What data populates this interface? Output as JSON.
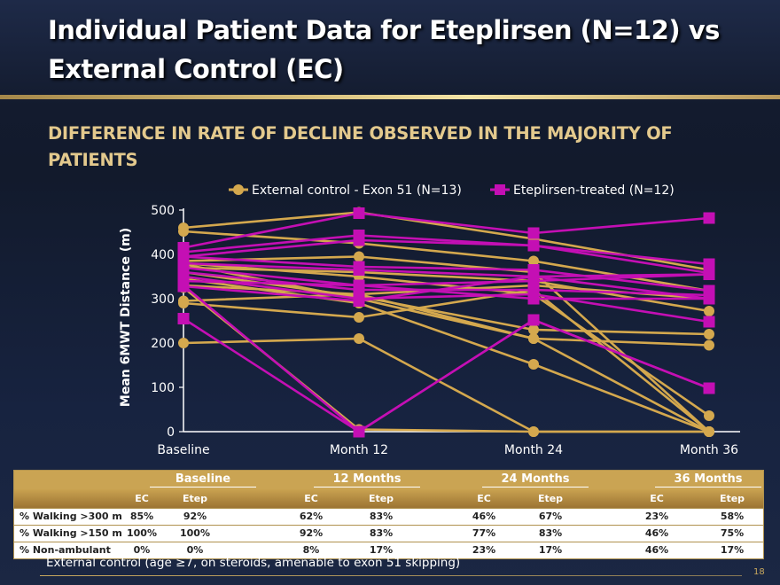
{
  "slide": {
    "title": "Individual Patient Data for Eteplirsen (N=12) vs External Control (EC)",
    "subtitle": "DIFFERENCE IN RATE OF DECLINE OBSERVED IN THE MAJORITY OF PATIENTS",
    "footnote": "External control (age ≥7, on steroids, amenable to exon 51 skipping)",
    "page_number": "18"
  },
  "chart_data": {
    "type": "line",
    "title": "",
    "xlabel": "",
    "ylabel": "Mean 6MWT Distance (m)",
    "categories": [
      "Baseline",
      "Month 12",
      "Month 24",
      "Month 36"
    ],
    "ylim": [
      0,
      500
    ],
    "yticks": [
      "0",
      "100",
      "200",
      "300",
      "400",
      "500"
    ],
    "grid": false,
    "legend": "top",
    "legend_entries": [
      {
        "label": "External control - Exon 51 (N=13)",
        "color": "#d4a84e",
        "marker": "circle"
      },
      {
        "label": "Eteplirsen-treated (N=12)",
        "color": "#c40fb4",
        "marker": "square"
      }
    ],
    "series_groups": [
      {
        "name": "External control - Exon 51 (N=13)",
        "color": "#d4a84e",
        "marker": "circle",
        "patients": [
          [
            460,
            495,
            435,
            365
          ],
          [
            452,
            425,
            385,
            318
          ],
          [
            385,
            395,
            360,
            0
          ],
          [
            380,
            350,
            310,
            36
          ],
          [
            378,
            300,
            210,
            0
          ],
          [
            370,
            360,
            340,
            272
          ],
          [
            360,
            305,
            230,
            220
          ],
          [
            345,
            290,
            152,
            0
          ],
          [
            330,
            310,
            210,
            195
          ],
          [
            325,
            5,
            0,
            0
          ],
          [
            295,
            310,
            330,
            300
          ],
          [
            290,
            258,
            320,
            0
          ],
          [
            200,
            210,
            0,
            0
          ]
        ]
      },
      {
        "name": "Eteplirsen-treated (N=12)",
        "color": "#c40fb4",
        "marker": "square",
        "patients": [
          [
            415,
            493,
            448,
            482
          ],
          [
            405,
            443,
            420,
            358
          ],
          [
            395,
            432,
            420,
            378
          ],
          [
            395,
            372,
            365,
            318
          ],
          [
            380,
            365,
            350,
            300
          ],
          [
            370,
            330,
            340,
            355
          ],
          [
            360,
            320,
            320,
            308
          ],
          [
            350,
            300,
            310,
            248
          ],
          [
            340,
            330,
            300,
            300
          ],
          [
            330,
            0,
            252,
            98
          ],
          [
            328,
            295,
            350,
            355
          ],
          [
            255,
            0,
            252,
            98
          ]
        ]
      }
    ]
  },
  "table": {
    "groups": [
      "Baseline",
      "12 Months",
      "24 Months",
      "36 Months"
    ],
    "subheaders": [
      "EC",
      "Etep"
    ],
    "rows": [
      {
        "label": "% Walking >300 m",
        "values": [
          "85%",
          "92%",
          "62%",
          "83%",
          "46%",
          "67%",
          "23%",
          "58%"
        ]
      },
      {
        "label": "% Walking >150 m",
        "values": [
          "100%",
          "100%",
          "92%",
          "83%",
          "77%",
          "83%",
          "46%",
          "75%"
        ]
      },
      {
        "label": "% Non-ambulant",
        "values": [
          "0%",
          "0%",
          "8%",
          "17%",
          "23%",
          "17%",
          "46%",
          "17%"
        ]
      }
    ]
  }
}
